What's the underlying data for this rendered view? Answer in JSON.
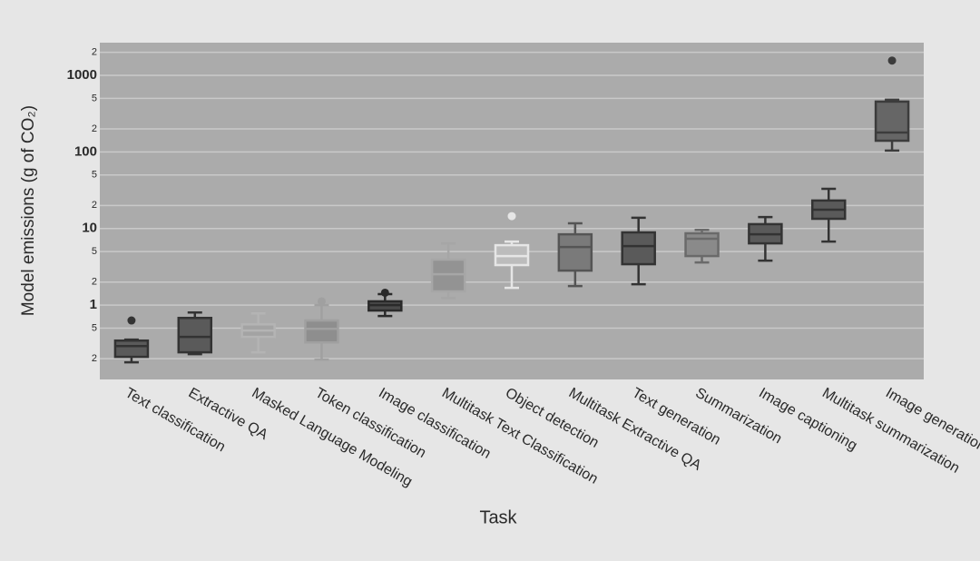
{
  "chart_data": {
    "type": "box",
    "x_label": "Task",
    "y_label": "Model emissions (g of CO₂)",
    "log_y": true,
    "grid": true,
    "categories": [
      "Text classification",
      "Extractive QA",
      "Masked Language Modeling",
      "Token classification",
      "Image classification",
      "Multitask Text Classification",
      "Object detection",
      "Multitask Extractive QA",
      "Text generation",
      "Summarization",
      "Image captioning",
      "Multitask summarization",
      "Image generation"
    ],
    "boxes": [
      {
        "min": 0.179,
        "q1": 0.211,
        "median": 0.292,
        "q3": 0.344,
        "max": 0.354,
        "outliers": [
          0.63
        ]
      },
      {
        "min": 0.229,
        "q1": 0.242,
        "median": 0.385,
        "q3": 0.68,
        "max": 0.8,
        "outliers": []
      },
      {
        "min": 0.242,
        "q1": 0.385,
        "median": 0.466,
        "q3": 0.56,
        "max": 0.78,
        "outliers": []
      },
      {
        "min": 0.194,
        "q1": 0.326,
        "median": 0.49,
        "q3": 0.63,
        "max": 1.0,
        "outliers": [
          1.12
        ]
      },
      {
        "min": 0.72,
        "q1": 0.85,
        "median": 1.0,
        "q3": 1.12,
        "max": 1.39,
        "outliers": [
          1.45
        ]
      },
      {
        "min": 1.24,
        "q1": 1.51,
        "median": 2.53,
        "q3": 3.92,
        "max": 6.4,
        "outliers": []
      },
      {
        "min": 1.68,
        "q1": 3.33,
        "median": 4.37,
        "q3": 6.06,
        "max": 6.75,
        "outliers": [
          14.5
        ]
      },
      {
        "min": 1.77,
        "q1": 2.82,
        "median": 5.74,
        "q3": 8.4,
        "max": 11.7,
        "outliers": []
      },
      {
        "min": 1.87,
        "q1": 3.42,
        "median": 5.9,
        "q3": 8.9,
        "max": 13.8,
        "outliers": []
      },
      {
        "min": 3.61,
        "q1": 4.37,
        "median": 7.35,
        "q3": 8.66,
        "max": 9.6,
        "outliers": []
      },
      {
        "min": 3.81,
        "q1": 6.4,
        "median": 8.4,
        "q3": 11.4,
        "max": 14.1,
        "outliers": []
      },
      {
        "min": 6.75,
        "q1": 13.4,
        "median": 17.6,
        "q3": 23.2,
        "max": 33,
        "outliers": []
      },
      {
        "min": 104,
        "q1": 140,
        "median": 179,
        "q3": 454,
        "max": 480,
        "outliers": [
          1560
        ]
      }
    ],
    "colors": [
      "#5a5a5a",
      "#5a5a5a",
      "#a3a3a3",
      "#8e8e8e",
      "#4a4a4a",
      "#939393",
      "#bcbcbc",
      "#7a7a7a",
      "#5a5a5a",
      "#8a8a8a",
      "#5a5a5a",
      "#5a5a5a",
      "#666666"
    ],
    "line_colors": [
      "#333333",
      "#333333",
      "#b4b4b4",
      "#a0a0a0",
      "#2a2a2a",
      "#a6a6a6",
      "#e6e6e6",
      "#555555",
      "#333333",
      "#6a6a6a",
      "#333333",
      "#333333",
      "#3c3c3c"
    ],
    "ylim": [
      0.107,
      2670
    ],
    "yticks": [
      {
        "value": 0.2,
        "label": "2"
      },
      {
        "value": 0.5,
        "label": "5"
      },
      1,
      {
        "value": 2,
        "label": "2"
      },
      {
        "value": 5,
        "label": "5"
      },
      10,
      {
        "value": 20,
        "label": "2"
      },
      {
        "value": 50,
        "label": "5"
      },
      100,
      {
        "value": 200,
        "label": "2"
      },
      {
        "value": 500,
        "label": "5"
      },
      1000,
      {
        "value": 2000,
        "label": "2"
      }
    ]
  }
}
